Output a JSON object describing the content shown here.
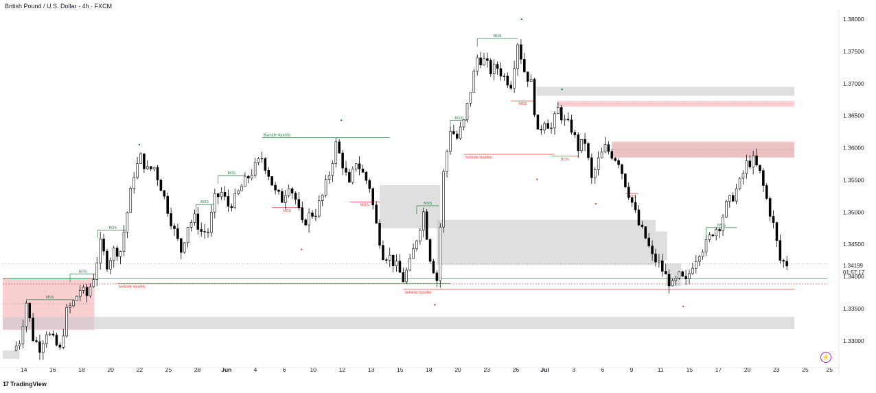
{
  "header": {
    "title": "British Pound / U.S. Dollar · 4h · FXCM"
  },
  "footer": {
    "brand_mark": "17",
    "brand": "TradingView",
    "lightning_icon": "lightning-icon"
  },
  "price_tag": {
    "price": "1.34199",
    "countdown": "01:57:17"
  },
  "colors": {
    "up": "#ffffff",
    "down": "#000000",
    "bull_ann": "#1b7a3a",
    "bear_ann": "#e53935",
    "gray_zone": "#c9cacd",
    "red_zone": "#f4a7ad"
  },
  "chart_data": {
    "type": "candlestick",
    "ylim": [
      1.327,
      1.3815
    ],
    "y_ticks": [
      "1.38000",
      "1.37500",
      "1.37000",
      "1.36500",
      "1.36000",
      "1.35500",
      "1.35000",
      "1.34500",
      "1.34000",
      "1.33500",
      "1.33000"
    ],
    "x_ticks": [
      "14",
      "16",
      "18",
      "20",
      "22",
      "25",
      "28",
      "Jun",
      "4",
      "6",
      "10",
      "12",
      "13",
      "15",
      "18",
      "20",
      "23",
      "26",
      "Jul",
      "3",
      "6",
      "9",
      "11",
      "15",
      "17",
      "20",
      "23",
      "25",
      "25"
    ],
    "x_tick_positions": [
      0.0,
      4.3,
      8.6,
      12.9,
      17.2,
      21.5,
      25.8,
      30.1,
      34.4,
      38.7,
      43.0,
      47.3,
      51.6,
      55.9,
      60.2,
      64.5,
      68.8,
      73.1,
      77.4,
      81.7,
      86.0,
      90.3,
      94.6,
      98.9,
      103.2,
      107.5,
      111.8,
      116.1,
      119.7
    ],
    "x_range": [
      -1.5,
      121
    ],
    "zones": [
      {
        "kind": "red",
        "x0": -1.5,
        "x1": 12.1,
        "y0": 1.3317,
        "y1": 1.3398
      },
      {
        "kind": "gray",
        "x0": -1.5,
        "x1": 116.1,
        "y0": 1.3318,
        "y1": 1.3337
      },
      {
        "kind": "gray",
        "x0": -1.5,
        "x1": 1.0,
        "y0": 1.3272,
        "y1": 1.3285
      },
      {
        "kind": "gray",
        "x0": 54.5,
        "x1": 63.5,
        "y0": 1.3475,
        "y1": 1.3542
      },
      {
        "kind": "gray",
        "x0": 63.0,
        "x1": 95.5,
        "y0": 1.3418,
        "y1": 1.3488
      },
      {
        "kind": "gray",
        "x0": 77.8,
        "x1": 116.1,
        "y0": 1.3681,
        "y1": 1.3695
      },
      {
        "kind": "red",
        "x0": 81.0,
        "x1": 116.1,
        "y0": 1.3664,
        "y1": 1.3673
      },
      {
        "kind": "gray",
        "x0": 89.0,
        "x1": 116.1,
        "y0": 1.3585,
        "y1": 1.3608
      },
      {
        "kind": "red",
        "x0": 89.0,
        "x1": 116.1,
        "y0": 1.3585,
        "y1": 1.361
      },
      {
        "kind": "gray",
        "x0": 95.5,
        "x1": 97.2,
        "y0": 1.3425,
        "y1": 1.347
      },
      {
        "kind": "gray",
        "x0": 97.0,
        "x1": 99.3,
        "y0": 1.3385,
        "y1": 1.342
      }
    ],
    "structure_lines": [
      {
        "kind": "bull",
        "label": "MSS",
        "x0": 2.0,
        "x1": 9.0,
        "y": 1.3364
      },
      {
        "kind": "bull",
        "label": "BOS",
        "x0": 8.5,
        "x1": 12.3,
        "y": 1.3404
      },
      {
        "kind": "bull",
        "label": "BOS",
        "x0": 12.6,
        "x1": 17.1,
        "y": 1.3472
      },
      {
        "kind": "bull",
        "label": "BOS",
        "x0": 27.2,
        "x1": 29.8,
        "y": 1.3512
      },
      {
        "kind": "bull",
        "label": "BOS",
        "x0": 30.5,
        "x1": 34.5,
        "y": 1.3557
      },
      {
        "kind": "bull",
        "label": "Buyside liquidity",
        "x0": 37.0,
        "x1": 56.0,
        "y": 1.3616
      },
      {
        "kind": "bull",
        "label": "MSS",
        "x0": 60.0,
        "x1": 63.3,
        "y": 1.351
      },
      {
        "kind": "bull",
        "label": "BOS",
        "x0": 65.0,
        "x1": 67.5,
        "y": 1.3643
      },
      {
        "kind": "bull",
        "label": "BOS",
        "x0": 69.0,
        "x1": 75.0,
        "y": 1.377
      },
      {
        "kind": "bull",
        "label": "MSS",
        "x0": 103.0,
        "x1": 107.6,
        "y": 1.3476
      },
      {
        "kind": "bear",
        "label": "MSS",
        "x0": 38.5,
        "x1": 43.0,
        "y": 1.3507
      },
      {
        "kind": "bear",
        "label": "MSS",
        "x0": 50.0,
        "x1": 54.5,
        "y": 1.3516
      },
      {
        "kind": "bear",
        "label": "Sellside liquidity",
        "x0": 15.5,
        "x1": 65.0,
        "y": 1.3389
      },
      {
        "kind": "bear",
        "label": "Sellside liquidity",
        "x0": 58.0,
        "x1": 116.1,
        "y": 1.338
      },
      {
        "kind": "bear",
        "label": "Sellside liquidity",
        "x0": 67.0,
        "x1": 80.5,
        "y": 1.359
      },
      {
        "kind": "bear",
        "label": "MSS",
        "x0": 74.0,
        "x1": 77.5,
        "y": 1.3673
      },
      {
        "kind": "bear",
        "label": "BOS",
        "x0": 80.0,
        "x1": 84.0,
        "y": 1.3587
      },
      {
        "kind": "bear",
        "label": "BOS",
        "x0": 91.0,
        "x1": 92.9,
        "y": 1.3529
      }
    ],
    "swing_points": [
      {
        "kind": "bull",
        "x": 18.8,
        "y": 1.3605
      },
      {
        "kind": "bull",
        "x": 48.8,
        "y": 1.3643
      },
      {
        "kind": "bull",
        "x": 75.6,
        "y": 1.38
      },
      {
        "kind": "bull",
        "x": 81.6,
        "y": 1.3691
      },
      {
        "kind": "bear",
        "x": 42.9,
        "y": 1.3442
      },
      {
        "kind": "bear",
        "x": 62.7,
        "y": 1.3356
      },
      {
        "kind": "bear",
        "x": 77.9,
        "y": 1.3551
      },
      {
        "kind": "bear",
        "x": 86.6,
        "y": 1.3513
      },
      {
        "kind": "bear",
        "x": 99.6,
        "y": 1.3353
      }
    ],
    "price_lines": [
      {
        "kind": "bull",
        "y": 1.33965
      },
      {
        "kind": "bear",
        "y": 1.33885
      }
    ],
    "last_price": 1.34199,
    "close_anchors": [
      [
        0,
        1.3285
      ],
      [
        1,
        1.33
      ],
      [
        2,
        1.336
      ],
      [
        3,
        1.3305
      ],
      [
        4,
        1.329
      ],
      [
        5,
        1.3315
      ],
      [
        6,
        1.33
      ],
      [
        7,
        1.3285
      ],
      [
        8,
        1.3345
      ],
      [
        9,
        1.336
      ],
      [
        10,
        1.338
      ],
      [
        11,
        1.337
      ],
      [
        12,
        1.34
      ],
      [
        13,
        1.345
      ],
      [
        14,
        1.342
      ],
      [
        15,
        1.344
      ],
      [
        16,
        1.344
      ],
      [
        17,
        1.35
      ],
      [
        18,
        1.356
      ],
      [
        19,
        1.3585
      ],
      [
        20,
        1.3565
      ],
      [
        21,
        1.357
      ],
      [
        22,
        1.354
      ],
      [
        23,
        1.3505
      ],
      [
        24,
        1.347
      ],
      [
        25,
        1.344
      ],
      [
        26,
        1.348
      ],
      [
        27,
        1.349
      ],
      [
        28,
        1.347
      ],
      [
        29,
        1.347
      ],
      [
        30,
        1.352
      ],
      [
        31,
        1.353
      ],
      [
        32,
        1.351
      ],
      [
        33,
        1.352
      ],
      [
        34,
        1.354
      ],
      [
        35,
        1.3555
      ],
      [
        36,
        1.357
      ],
      [
        37,
        1.3585
      ],
      [
        38,
        1.356
      ],
      [
        39,
        1.353
      ],
      [
        40,
        1.352
      ],
      [
        41,
        1.3545
      ],
      [
        42,
        1.352
      ],
      [
        43,
        1.348
      ],
      [
        44,
        1.3495
      ],
      [
        45,
        1.35
      ],
      [
        46,
        1.3525
      ],
      [
        47,
        1.356
      ],
      [
        48,
        1.3605
      ],
      [
        49,
        1.3575
      ],
      [
        50,
        1.354
      ],
      [
        51,
        1.358
      ],
      [
        52,
        1.356
      ],
      [
        53,
        1.354
      ],
      [
        54,
        1.348
      ],
      [
        55,
        1.3435
      ],
      [
        56,
        1.343
      ],
      [
        57,
        1.3415
      ],
      [
        58,
        1.3395
      ],
      [
        59,
        1.342
      ],
      [
        60,
        1.346
      ],
      [
        61,
        1.35
      ],
      [
        62,
        1.343
      ],
      [
        63,
        1.3395
      ],
      [
        64,
        1.356
      ],
      [
        65,
        1.363
      ],
      [
        66,
        1.3615
      ],
      [
        67,
        1.364
      ],
      [
        68,
        1.369
      ],
      [
        69,
        1.374
      ],
      [
        70,
        1.3735
      ],
      [
        71,
        1.372
      ],
      [
        72,
        1.3725
      ],
      [
        73,
        1.371
      ],
      [
        74,
        1.37
      ],
      [
        75,
        1.3765
      ],
      [
        76,
        1.372
      ],
      [
        77,
        1.37
      ],
      [
        78,
        1.362
      ],
      [
        79,
        1.3645
      ],
      [
        80,
        1.363
      ],
      [
        81,
        1.366
      ],
      [
        82,
        1.364
      ],
      [
        83,
        1.363
      ],
      [
        84,
        1.36
      ],
      [
        85,
        1.361
      ],
      [
        86,
        1.355
      ],
      [
        87,
        1.358
      ],
      [
        88,
        1.36
      ],
      [
        89,
        1.359
      ],
      [
        90,
        1.358
      ],
      [
        91,
        1.3545
      ],
      [
        92,
        1.3515
      ],
      [
        93,
        1.348
      ],
      [
        94,
        1.346
      ],
      [
        95,
        1.343
      ],
      [
        96,
        1.342
      ],
      [
        97,
        1.34
      ],
      [
        98,
        1.3385
      ],
      [
        99,
        1.34
      ],
      [
        100,
        1.339
      ],
      [
        101,
        1.342
      ],
      [
        102,
        1.344
      ],
      [
        103,
        1.345
      ],
      [
        104,
        1.347
      ],
      [
        105,
        1.348
      ],
      [
        106,
        1.351
      ],
      [
        107,
        1.3525
      ],
      [
        108,
        1.3545
      ],
      [
        109,
        1.3575
      ],
      [
        110,
        1.358
      ],
      [
        111,
        1.356
      ],
      [
        112,
        1.352
      ],
      [
        113,
        1.348
      ],
      [
        114,
        1.3425
      ],
      [
        115,
        1.342
      ]
    ]
  }
}
